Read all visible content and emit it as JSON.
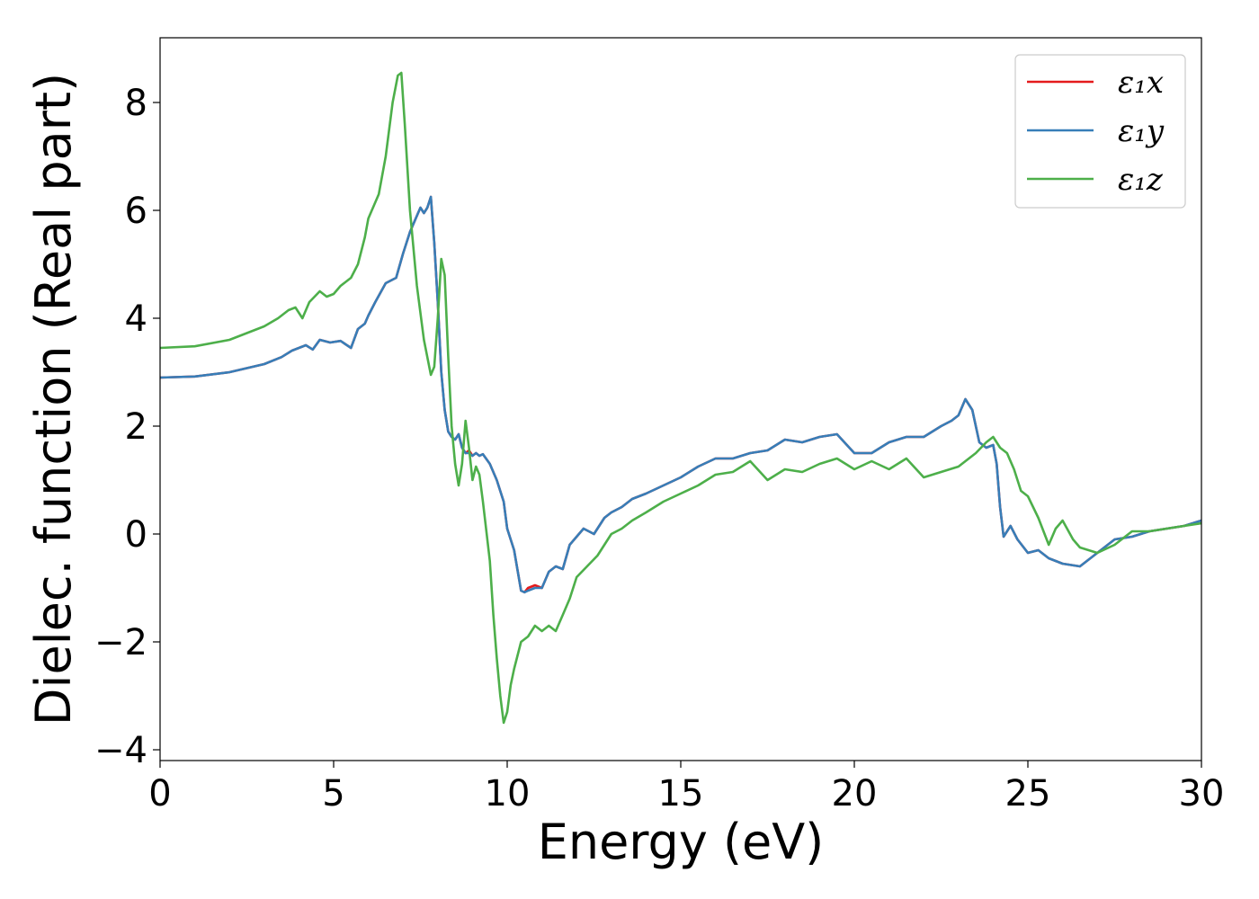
{
  "chart_data": {
    "type": "line",
    "xlabel": "Energy (eV)",
    "ylabel": "Dielec. function (Real part)",
    "xlim": [
      0,
      30
    ],
    "ylim": [
      -4.2,
      9.2
    ],
    "xticks": [
      0,
      5,
      10,
      15,
      20,
      25,
      30
    ],
    "yticks": [
      -4,
      -2,
      0,
      2,
      4,
      6,
      8
    ],
    "xtick_labels": [
      "0",
      "5",
      "10",
      "15",
      "20",
      "25",
      "30"
    ],
    "ytick_labels": [
      "−4",
      "−2",
      "0",
      "2",
      "4",
      "6",
      "8"
    ],
    "grid": false,
    "legend_position": "top-right",
    "series": [
      {
        "name": "ε₁x",
        "color": "#e41a1c",
        "x": [
          0,
          1,
          2,
          3,
          3.5,
          3.8,
          4.0,
          4.2,
          4.4,
          4.6,
          4.9,
          5.2,
          5.5,
          5.7,
          5.9,
          6.0,
          6.2,
          6.5,
          6.8,
          7.0,
          7.2,
          7.4,
          7.5,
          7.6,
          7.7,
          7.8,
          7.9,
          8.0,
          8.1,
          8.2,
          8.3,
          8.4,
          8.5,
          8.6,
          8.7,
          8.8,
          8.9,
          9.0,
          9.1,
          9.2,
          9.3,
          9.5,
          9.7,
          9.9,
          10.0,
          10.2,
          10.4,
          10.5,
          10.6,
          10.8,
          11.0,
          11.2,
          11.4,
          11.6,
          11.8,
          12.0,
          12.2,
          12.5,
          12.8,
          13.0,
          13.3,
          13.6,
          14.0,
          14.5,
          15.0,
          15.5,
          16.0,
          16.5,
          17.0,
          17.5,
          18.0,
          18.5,
          19.0,
          19.5,
          20.0,
          20.5,
          21.0,
          21.5,
          22.0,
          22.5,
          22.8,
          23.0,
          23.2,
          23.4,
          23.6,
          23.8,
          24.0,
          24.1,
          24.2,
          24.3,
          24.5,
          24.7,
          25.0,
          25.3,
          25.6,
          26.0,
          26.5,
          27.0,
          27.5,
          28.0,
          28.5,
          29.0,
          29.5,
          30.0
        ],
        "values": [
          2.9,
          2.92,
          3.0,
          3.15,
          3.28,
          3.4,
          3.45,
          3.5,
          3.42,
          3.6,
          3.55,
          3.58,
          3.45,
          3.8,
          3.9,
          4.05,
          4.3,
          4.65,
          4.75,
          5.2,
          5.6,
          5.9,
          6.05,
          5.95,
          6.05,
          6.25,
          5.4,
          4.3,
          3.0,
          2.3,
          1.9,
          1.8,
          1.75,
          1.85,
          1.6,
          1.5,
          1.55,
          1.45,
          1.5,
          1.45,
          1.48,
          1.3,
          1.0,
          0.6,
          0.1,
          -0.3,
          -1.05,
          -1.08,
          -1.0,
          -0.95,
          -1.0,
          -0.7,
          -0.6,
          -0.65,
          -0.2,
          -0.05,
          0.1,
          0.0,
          0.3,
          0.4,
          0.5,
          0.65,
          0.75,
          0.9,
          1.05,
          1.25,
          1.4,
          1.4,
          1.5,
          1.55,
          1.75,
          1.7,
          1.8,
          1.85,
          1.5,
          1.5,
          1.7,
          1.8,
          1.8,
          2.0,
          2.1,
          2.2,
          2.5,
          2.3,
          1.7,
          1.6,
          1.65,
          1.3,
          0.5,
          -0.05,
          0.15,
          -0.1,
          -0.35,
          -0.3,
          -0.45,
          -0.55,
          -0.6,
          -0.35,
          -0.1,
          -0.05,
          0.05,
          0.1,
          0.15,
          0.25
        ]
      },
      {
        "name": "ε₁y",
        "color": "#377eb8",
        "x": [
          0,
          1,
          2,
          3,
          3.5,
          3.8,
          4.0,
          4.2,
          4.4,
          4.6,
          4.9,
          5.2,
          5.5,
          5.7,
          5.9,
          6.0,
          6.2,
          6.5,
          6.8,
          7.0,
          7.2,
          7.4,
          7.5,
          7.6,
          7.7,
          7.8,
          7.9,
          8.0,
          8.1,
          8.2,
          8.3,
          8.4,
          8.5,
          8.6,
          8.7,
          8.8,
          8.9,
          9.0,
          9.1,
          9.2,
          9.3,
          9.5,
          9.7,
          9.9,
          10.0,
          10.2,
          10.4,
          10.5,
          10.6,
          10.8,
          11.0,
          11.2,
          11.4,
          11.6,
          11.8,
          12.0,
          12.2,
          12.5,
          12.8,
          13.0,
          13.3,
          13.6,
          14.0,
          14.5,
          15.0,
          15.5,
          16.0,
          16.5,
          17.0,
          17.5,
          18.0,
          18.5,
          19.0,
          19.5,
          20.0,
          20.5,
          21.0,
          21.5,
          22.0,
          22.5,
          22.8,
          23.0,
          23.2,
          23.4,
          23.6,
          23.8,
          24.0,
          24.1,
          24.2,
          24.3,
          24.5,
          24.7,
          25.0,
          25.3,
          25.6,
          26.0,
          26.5,
          27.0,
          27.5,
          28.0,
          28.5,
          29.0,
          29.5,
          30.0
        ],
        "values": [
          2.9,
          2.92,
          3.0,
          3.15,
          3.28,
          3.4,
          3.45,
          3.5,
          3.42,
          3.6,
          3.55,
          3.58,
          3.45,
          3.8,
          3.9,
          4.05,
          4.3,
          4.65,
          4.75,
          5.2,
          5.6,
          5.9,
          6.05,
          5.95,
          6.05,
          6.25,
          5.4,
          4.3,
          3.0,
          2.3,
          1.9,
          1.8,
          1.75,
          1.85,
          1.6,
          1.5,
          1.5,
          1.45,
          1.5,
          1.45,
          1.48,
          1.3,
          1.0,
          0.6,
          0.1,
          -0.3,
          -1.05,
          -1.08,
          -1.05,
          -1.0,
          -1.0,
          -0.7,
          -0.6,
          -0.65,
          -0.2,
          -0.05,
          0.1,
          0.0,
          0.3,
          0.4,
          0.5,
          0.65,
          0.75,
          0.9,
          1.05,
          1.25,
          1.4,
          1.4,
          1.5,
          1.55,
          1.75,
          1.7,
          1.8,
          1.85,
          1.5,
          1.5,
          1.7,
          1.8,
          1.8,
          2.0,
          2.1,
          2.2,
          2.5,
          2.3,
          1.7,
          1.6,
          1.65,
          1.3,
          0.5,
          -0.05,
          0.15,
          -0.1,
          -0.35,
          -0.3,
          -0.45,
          -0.55,
          -0.6,
          -0.35,
          -0.1,
          -0.05,
          0.05,
          0.1,
          0.15,
          0.25
        ]
      },
      {
        "name": "ε₁z",
        "color": "#4daf4a",
        "x": [
          0,
          1,
          2,
          3,
          3.4,
          3.7,
          3.9,
          4.1,
          4.3,
          4.6,
          4.8,
          5.0,
          5.2,
          5.5,
          5.7,
          5.9,
          6.0,
          6.3,
          6.5,
          6.7,
          6.85,
          6.95,
          7.05,
          7.2,
          7.4,
          7.6,
          7.8,
          7.9,
          8.0,
          8.1,
          8.2,
          8.3,
          8.4,
          8.5,
          8.6,
          8.7,
          8.8,
          8.9,
          9.0,
          9.1,
          9.2,
          9.3,
          9.5,
          9.6,
          9.7,
          9.8,
          9.9,
          10.0,
          10.1,
          10.2,
          10.4,
          10.6,
          10.8,
          11.0,
          11.2,
          11.4,
          11.6,
          11.8,
          12.0,
          12.3,
          12.6,
          13.0,
          13.3,
          13.6,
          14.0,
          14.5,
          15.0,
          15.5,
          16.0,
          16.5,
          17.0,
          17.5,
          18.0,
          18.5,
          19.0,
          19.5,
          20.0,
          20.5,
          21.0,
          21.5,
          22.0,
          22.5,
          23.0,
          23.5,
          23.8,
          24.0,
          24.2,
          24.4,
          24.6,
          24.8,
          25.0,
          25.3,
          25.6,
          25.8,
          26.0,
          26.3,
          26.5,
          27.0,
          27.5,
          28.0,
          28.5,
          29.0,
          29.5,
          30.0
        ],
        "values": [
          3.45,
          3.48,
          3.6,
          3.85,
          4.0,
          4.15,
          4.2,
          4.0,
          4.3,
          4.5,
          4.4,
          4.45,
          4.6,
          4.75,
          5.0,
          5.5,
          5.85,
          6.3,
          7.0,
          8.0,
          8.5,
          8.55,
          7.6,
          6.0,
          4.6,
          3.6,
          2.95,
          3.1,
          4.0,
          5.1,
          4.8,
          3.3,
          2.0,
          1.3,
          0.9,
          1.3,
          2.1,
          1.6,
          1.0,
          1.25,
          1.1,
          0.6,
          -0.5,
          -1.5,
          -2.3,
          -3.0,
          -3.5,
          -3.3,
          -2.8,
          -2.5,
          -2.0,
          -1.9,
          -1.7,
          -1.8,
          -1.7,
          -1.8,
          -1.5,
          -1.2,
          -0.8,
          -0.6,
          -0.4,
          0.0,
          0.1,
          0.25,
          0.4,
          0.6,
          0.75,
          0.9,
          1.1,
          1.15,
          1.35,
          1.0,
          1.2,
          1.15,
          1.3,
          1.4,
          1.2,
          1.35,
          1.2,
          1.4,
          1.05,
          1.15,
          1.25,
          1.5,
          1.7,
          1.8,
          1.6,
          1.5,
          1.2,
          0.8,
          0.7,
          0.3,
          -0.2,
          0.1,
          0.25,
          -0.1,
          -0.25,
          -0.35,
          -0.2,
          0.05,
          0.05,
          0.1,
          0.15,
          0.2
        ]
      }
    ]
  }
}
